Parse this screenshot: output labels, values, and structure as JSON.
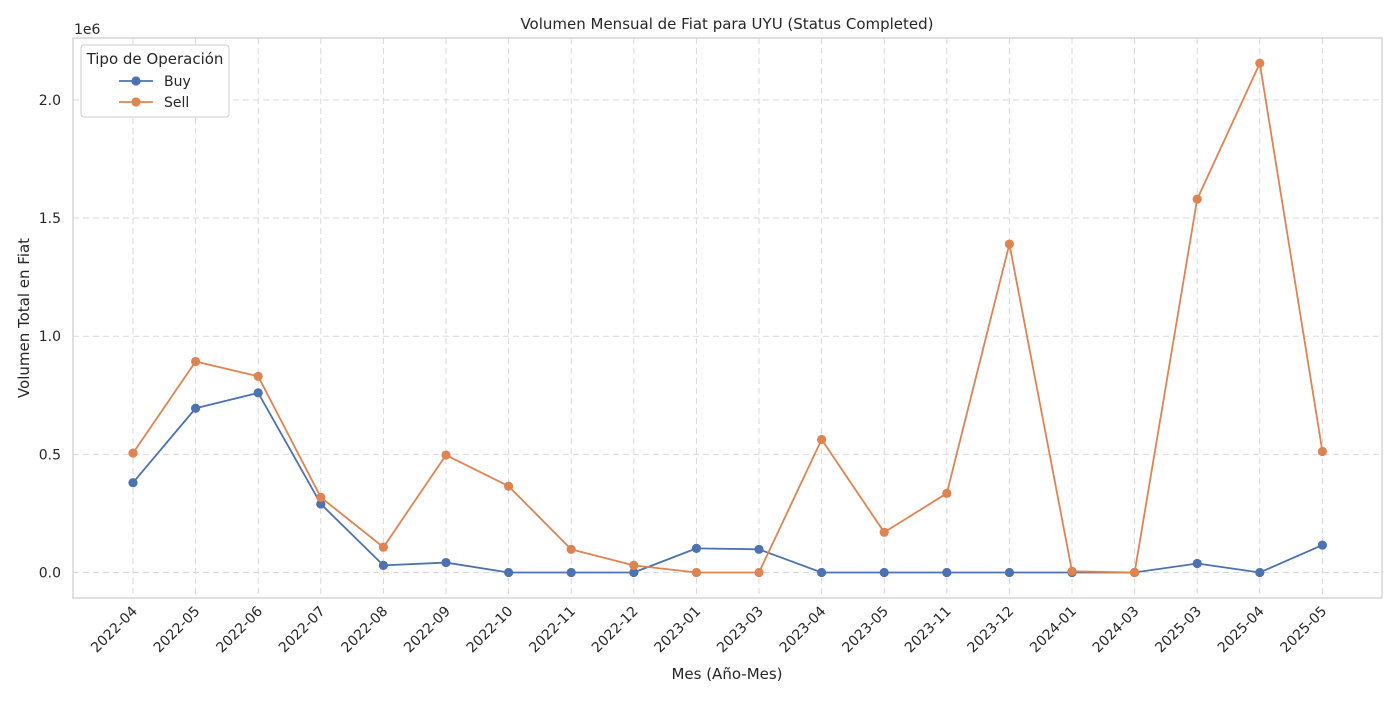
{
  "chart_data": {
    "type": "line",
    "title": "Volumen Mensual de Fiat para UYU (Status Completed)",
    "xlabel": "Mes (Año-Mes)",
    "ylabel": "Volumen Total en Fiat",
    "y_offset_text": "1e6",
    "ylim": [
      -0.108,
      2.262
    ],
    "y_scale_factor": 1000000,
    "y_ticks": [
      0.0,
      0.5,
      1.0,
      1.5,
      2.0
    ],
    "y_tick_labels": [
      "0.0",
      "0.5",
      "1.0",
      "1.5",
      "2.0"
    ],
    "grid": true,
    "legend": {
      "title": "Tipo de Operación",
      "placement": "top-left"
    },
    "categories": [
      "2022-04",
      "2022-05",
      "2022-06",
      "2022-07",
      "2022-08",
      "2022-09",
      "2022-10",
      "2022-11",
      "2022-12",
      "2023-01",
      "2023-03",
      "2023-04",
      "2023-05",
      "2023-11",
      "2023-12",
      "2024-01",
      "2024-03",
      "2025-03",
      "2025-04",
      "2025-05"
    ],
    "series": [
      {
        "name": "Buy",
        "color": "#4c72b0",
        "values": [
          0.38,
          0.695,
          0.76,
          0.29,
          0.03,
          0.042,
          0.0,
          0.0,
          0.0,
          0.102,
          0.098,
          0.0,
          0.0,
          0.0,
          0.0,
          0.0,
          0.0,
          0.038,
          0.0,
          0.116
        ]
      },
      {
        "name": "Sell",
        "color": "#dd8452",
        "values": [
          0.505,
          0.893,
          0.83,
          0.318,
          0.107,
          0.497,
          0.365,
          0.098,
          0.03,
          0.0,
          0.0,
          0.563,
          0.17,
          0.335,
          1.39,
          0.005,
          0.0,
          1.58,
          2.155,
          0.512
        ]
      }
    ]
  }
}
